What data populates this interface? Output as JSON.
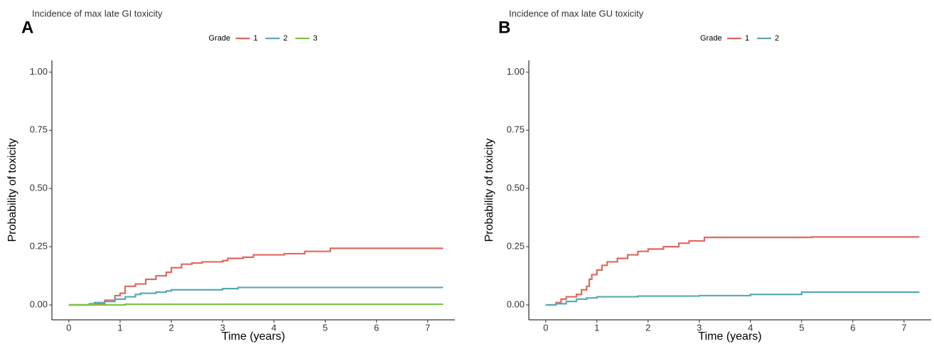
{
  "chart_data": [
    {
      "type": "line",
      "step": "post",
      "panel_label": "A",
      "title": "Incidence of max late GI toxicity",
      "legend_title": "Grade",
      "legend_position": "top",
      "x_label": "Time (years)",
      "y_label": "Probability of toxicity",
      "xlim": [
        -0.33,
        7.53
      ],
      "ylim": [
        -0.064,
        1.05
      ],
      "xticks": [
        0,
        1,
        2,
        3,
        4,
        5,
        6,
        7
      ],
      "yticks": [
        {
          "value": 0,
          "label": "0.00"
        },
        {
          "value": 0.25,
          "label": "0.25"
        },
        {
          "value": 0.5,
          "label": "0.50"
        },
        {
          "value": 0.75,
          "label": "0.75"
        },
        {
          "value": 1,
          "label": "1.00"
        }
      ],
      "series": [
        {
          "name": "1",
          "color": "#e0685f",
          "x": [
            0,
            0.5,
            0.7,
            0.9,
            1.0,
            1.1,
            1.3,
            1.5,
            1.7,
            1.9,
            2.0,
            2.2,
            2.4,
            2.6,
            3.0,
            3.1,
            3.4,
            3.6,
            4.2,
            4.6,
            5.1,
            7.3
          ],
          "values": [
            0,
            0.005,
            0.02,
            0.04,
            0.05,
            0.08,
            0.09,
            0.11,
            0.125,
            0.14,
            0.16,
            0.175,
            0.18,
            0.185,
            0.19,
            0.2,
            0.205,
            0.215,
            0.22,
            0.23,
            0.243,
            0.243
          ]
        },
        {
          "name": "2",
          "color": "#5aa9b3",
          "x": [
            0,
            0.4,
            0.5,
            0.7,
            0.9,
            1.1,
            1.3,
            1.4,
            1.7,
            1.9,
            2.0,
            3.0,
            3.3,
            7.3
          ],
          "values": [
            0,
            0.005,
            0.01,
            0.015,
            0.025,
            0.035,
            0.045,
            0.05,
            0.055,
            0.06,
            0.065,
            0.07,
            0.075,
            0.075
          ]
        },
        {
          "name": "3",
          "color": "#7dc243",
          "x": [
            0,
            1.1,
            7.3
          ],
          "values": [
            0,
            0.003,
            0.003
          ]
        }
      ]
    },
    {
      "type": "line",
      "step": "post",
      "panel_label": "B",
      "title": "Incidence of max late GU toxicity",
      "legend_title": "Grade",
      "legend_position": "top",
      "x_label": "Time (years)",
      "y_label": "Probability of toxicity",
      "xlim": [
        -0.33,
        7.53
      ],
      "ylim": [
        -0.064,
        1.05
      ],
      "xticks": [
        0,
        1,
        2,
        3,
        4,
        5,
        6,
        7
      ],
      "yticks": [
        {
          "value": 0,
          "label": "0.00"
        },
        {
          "value": 0.25,
          "label": "0.25"
        },
        {
          "value": 0.5,
          "label": "0.50"
        },
        {
          "value": 0.75,
          "label": "0.75"
        },
        {
          "value": 1,
          "label": "1.00"
        }
      ],
      "series": [
        {
          "name": "1",
          "color": "#e0685f",
          "x": [
            0,
            0.2,
            0.3,
            0.4,
            0.6,
            0.7,
            0.8,
            0.85,
            0.9,
            1.0,
            1.1,
            1.2,
            1.4,
            1.6,
            1.8,
            2.0,
            2.3,
            2.6,
            2.8,
            3.1,
            5.2,
            7.3
          ],
          "values": [
            0,
            0.01,
            0.025,
            0.035,
            0.045,
            0.065,
            0.08,
            0.11,
            0.13,
            0.15,
            0.17,
            0.185,
            0.2,
            0.215,
            0.23,
            0.24,
            0.25,
            0.265,
            0.275,
            0.29,
            0.292,
            0.292
          ]
        },
        {
          "name": "2",
          "color": "#5aa9b3",
          "x": [
            0,
            0.2,
            0.4,
            0.6,
            0.8,
            1.0,
            1.8,
            3.0,
            4.0,
            5.0,
            7.3
          ],
          "values": [
            0,
            0.005,
            0.015,
            0.025,
            0.03,
            0.035,
            0.038,
            0.04,
            0.045,
            0.055,
            0.055
          ]
        }
      ]
    }
  ]
}
